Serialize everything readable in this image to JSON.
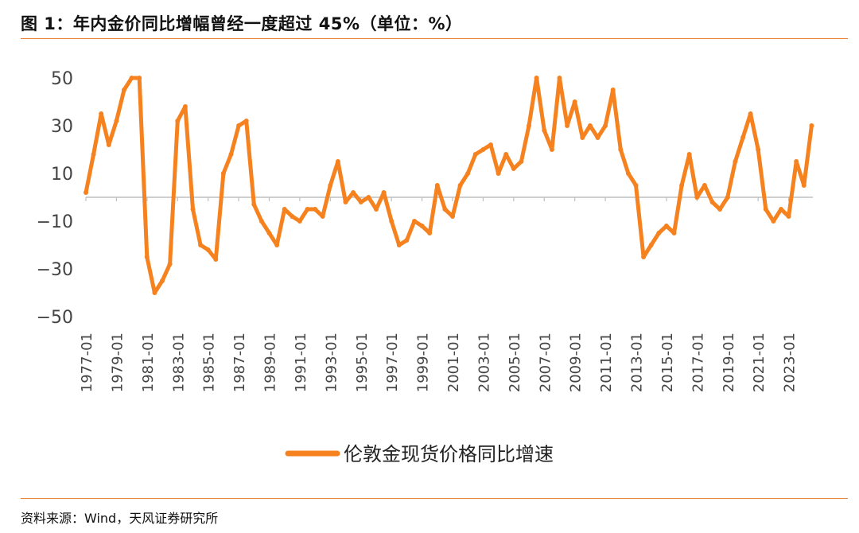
{
  "figure": {
    "title": "图 1：年内金价同比增幅曾经一度超过 45%（单位：%）",
    "source": "资料来源：Wind，天风证券研究所"
  },
  "colors": {
    "accent": "#e8833a",
    "series": "#f5821f",
    "axis": "#bfbfbf"
  },
  "chart_data": {
    "type": "line",
    "title": "",
    "xlabel": "",
    "ylabel": "",
    "ylim": [
      -50,
      50
    ],
    "yticks": [
      50,
      30,
      10,
      -10,
      -30,
      -50
    ],
    "ytick_labels": [
      "50",
      "30",
      "10",
      "−10",
      "−30",
      "−50"
    ],
    "xticks": [
      "1977-01",
      "1979-01",
      "1981-01",
      "1983-01",
      "1985-01",
      "1987-01",
      "1989-01",
      "1991-01",
      "1993-01",
      "1995-01",
      "1997-01",
      "1999-01",
      "2001-01",
      "2003-01",
      "2005-01",
      "2007-01",
      "2009-01",
      "2011-01",
      "2013-01",
      "2015-01",
      "2017-01",
      "2019-01",
      "2021-01",
      "2023-01"
    ],
    "legend_position": "bottom-center",
    "grid": false,
    "series": [
      {
        "name": "伦敦金现货价格同比增速",
        "x": [
          "1977-01",
          "1977-07",
          "1978-01",
          "1978-07",
          "1979-01",
          "1979-07",
          "1980-01",
          "1980-07",
          "1981-01",
          "1981-07",
          "1982-01",
          "1982-07",
          "1983-01",
          "1983-07",
          "1984-01",
          "1984-07",
          "1985-01",
          "1985-07",
          "1986-01",
          "1986-07",
          "1987-01",
          "1987-07",
          "1988-01",
          "1988-07",
          "1989-01",
          "1989-07",
          "1990-01",
          "1990-07",
          "1991-01",
          "1991-07",
          "1992-01",
          "1992-07",
          "1993-01",
          "1993-07",
          "1994-01",
          "1994-07",
          "1995-01",
          "1995-07",
          "1996-01",
          "1996-07",
          "1997-01",
          "1997-07",
          "1998-01",
          "1998-07",
          "1999-01",
          "1999-07",
          "2000-01",
          "2000-07",
          "2001-01",
          "2001-07",
          "2002-01",
          "2002-07",
          "2003-01",
          "2003-07",
          "2004-01",
          "2004-07",
          "2005-01",
          "2005-07",
          "2006-01",
          "2006-07",
          "2007-01",
          "2007-07",
          "2008-01",
          "2008-07",
          "2009-01",
          "2009-07",
          "2010-01",
          "2010-07",
          "2011-01",
          "2011-07",
          "2012-01",
          "2012-07",
          "2013-01",
          "2013-07",
          "2014-01",
          "2014-07",
          "2015-01",
          "2015-07",
          "2016-01",
          "2016-07",
          "2017-01",
          "2017-07",
          "2018-01",
          "2018-07",
          "2019-01",
          "2019-07",
          "2020-01",
          "2020-07",
          "2021-01",
          "2021-07",
          "2022-01",
          "2022-07",
          "2023-01",
          "2023-07",
          "2024-01",
          "2024-07"
        ],
        "values": [
          2,
          18,
          35,
          22,
          32,
          45,
          50,
          50,
          -25,
          -40,
          -35,
          -28,
          32,
          38,
          -5,
          -20,
          -22,
          -26,
          10,
          18,
          30,
          32,
          -3,
          -10,
          -15,
          -20,
          -5,
          -8,
          -10,
          -5,
          -5,
          -8,
          5,
          15,
          -2,
          2,
          -2,
          0,
          -5,
          2,
          -10,
          -20,
          -18,
          -10,
          -12,
          -15,
          5,
          -5,
          -8,
          5,
          10,
          18,
          20,
          22,
          10,
          18,
          12,
          15,
          30,
          50,
          28,
          20,
          50,
          30,
          40,
          25,
          30,
          25,
          30,
          45,
          20,
          10,
          5,
          -25,
          -20,
          -15,
          -12,
          -15,
          5,
          18,
          0,
          5,
          -2,
          -5,
          0,
          15,
          25,
          35,
          20,
          -5,
          -10,
          -5,
          -8,
          15,
          5,
          30
        ]
      }
    ]
  }
}
